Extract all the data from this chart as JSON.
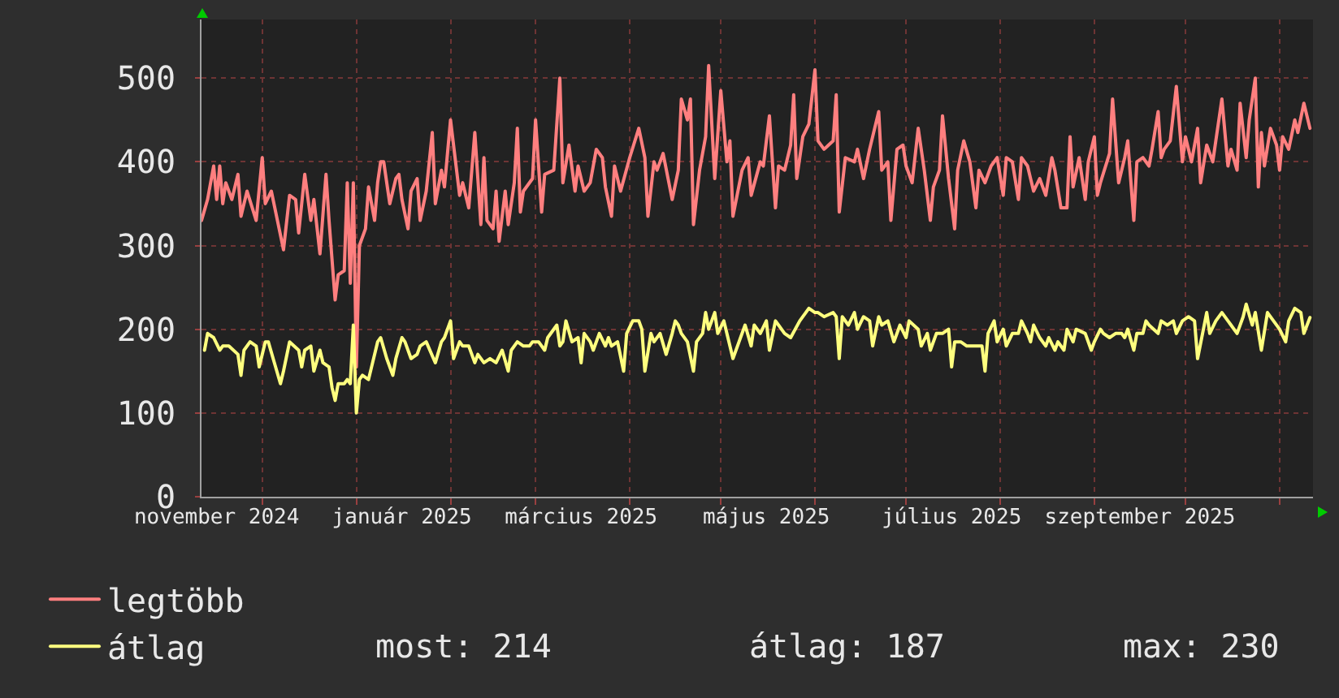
{
  "chart_data": {
    "type": "line",
    "series": [
      {
        "name": "legtöbb",
        "color": "#ff7f7f",
        "x": [
          "2024-11-11",
          "2024-11-13",
          "2024-11-15",
          "2024-11-16",
          "2024-11-17",
          "2024-11-18",
          "2024-11-19",
          "2024-11-21",
          "2024-11-23",
          "2024-11-24",
          "2024-11-26",
          "2024-11-29",
          "2024-12-01",
          "2024-12-02",
          "2024-12-04",
          "2024-12-06",
          "2024-12-08",
          "2024-12-10",
          "2024-12-12",
          "2024-12-13",
          "2024-12-15",
          "2024-12-17",
          "2024-12-18",
          "2024-12-20",
          "2024-12-22",
          "2024-12-23",
          "2024-12-25",
          "2024-12-26",
          "2024-12-28",
          "2024-12-29",
          "2024-12-30",
          "2024-12-31",
          "2025-01-01",
          "2025-01-02",
          "2025-01-04",
          "2025-01-05",
          "2025-01-07",
          "2025-01-08",
          "2025-01-09",
          "2025-01-10",
          "2025-01-12",
          "2025-01-14",
          "2025-01-15",
          "2025-01-16",
          "2025-01-18",
          "2025-01-19",
          "2025-01-21",
          "2025-01-22",
          "2025-01-24",
          "2025-01-26",
          "2025-01-27",
          "2025-01-29",
          "2025-01-30",
          "2025-02-01",
          "2025-02-02",
          "2025-02-04",
          "2025-02-05",
          "2025-02-07",
          "2025-02-09",
          "2025-02-11",
          "2025-02-12",
          "2025-02-13",
          "2025-02-15",
          "2025-02-16",
          "2025-02-17",
          "2025-02-19",
          "2025-02-20",
          "2025-02-22",
          "2025-02-23",
          "2025-02-24",
          "2025-02-25",
          "2025-02-28",
          "2025-03-01",
          "2025-03-03",
          "2025-03-04",
          "2025-03-07",
          "2025-03-09",
          "2025-03-10",
          "2025-03-12",
          "2025-03-14",
          "2025-03-15",
          "2025-03-17",
          "2025-03-19",
          "2025-03-21",
          "2025-03-23",
          "2025-03-24",
          "2025-03-26",
          "2025-03-27",
          "2025-03-29",
          "2025-04-01",
          "2025-04-04",
          "2025-04-06",
          "2025-04-07",
          "2025-04-09",
          "2025-04-10",
          "2025-04-12",
          "2025-04-15",
          "2025-04-17",
          "2025-04-18",
          "2025-04-20",
          "2025-04-21",
          "2025-04-22",
          "2025-04-24",
          "2025-04-26",
          "2025-04-27",
          "2025-04-29",
          "2025-05-01",
          "2025-05-03",
          "2025-05-04",
          "2025-05-05",
          "2025-05-08",
          "2025-05-10",
          "2025-05-11",
          "2025-05-14",
          "2025-05-15",
          "2025-05-17",
          "2025-05-19",
          "2025-05-20",
          "2025-05-22",
          "2025-05-24",
          "2025-05-25",
          "2025-05-26",
          "2025-05-28",
          "2025-05-30",
          "2025-06-01",
          "2025-06-02",
          "2025-06-04",
          "2025-06-07",
          "2025-06-08",
          "2025-06-09",
          "2025-06-11",
          "2025-06-14",
          "2025-06-15",
          "2025-06-17",
          "2025-06-19",
          "2025-06-22",
          "2025-06-23",
          "2025-06-25",
          "2025-06-26",
          "2025-06-28",
          "2025-06-30",
          "2025-07-01",
          "2025-07-03",
          "2025-07-05",
          "2025-07-07",
          "2025-07-09",
          "2025-07-10",
          "2025-07-12",
          "2025-07-13",
          "2025-07-15",
          "2025-07-17",
          "2025-07-18",
          "2025-07-20",
          "2025-07-22",
          "2025-07-24",
          "2025-07-25",
          "2025-07-27",
          "2025-07-29",
          "2025-07-31",
          "2025-08-02",
          "2025-08-03",
          "2025-08-05",
          "2025-08-07",
          "2025-08-08",
          "2025-08-10",
          "2025-08-12",
          "2025-08-14",
          "2025-08-16",
          "2025-08-18",
          "2025-08-19",
          "2025-08-21",
          "2025-08-23",
          "2025-08-24",
          "2025-08-25",
          "2025-08-27",
          "2025-08-29",
          "2025-08-30",
          "2025-09-01",
          "2025-09-02",
          "2025-09-03",
          "2025-09-06",
          "2025-09-07",
          "2025-09-09",
          "2025-09-11",
          "2025-09-12",
          "2025-09-14",
          "2025-09-15",
          "2025-09-17",
          "2025-09-19",
          "2025-09-20",
          "2025-09-22",
          "2025-09-23",
          "2025-09-24",
          "2025-09-26",
          "2025-09-28",
          "2025-09-30",
          "2025-10-01",
          "2025-10-03",
          "2025-10-05",
          "2025-10-06",
          "2025-10-08",
          "2025-10-10",
          "2025-10-11",
          "2025-10-13",
          "2025-10-15",
          "2025-10-16",
          "2025-10-18",
          "2025-10-19",
          "2025-10-21",
          "2025-10-22",
          "2025-10-24",
          "2025-10-25",
          "2025-10-26",
          "2025-10-27",
          "2025-10-29",
          "2025-10-31",
          "2025-11-01",
          "2025-11-02",
          "2025-11-04",
          "2025-11-06",
          "2025-11-07",
          "2025-11-09",
          "2025-11-11"
        ],
        "values": [
          330,
          355,
          395,
          355,
          395,
          350,
          375,
          355,
          385,
          335,
          365,
          330,
          405,
          350,
          365,
          330,
          295,
          360,
          355,
          315,
          385,
          330,
          355,
          290,
          385,
          330,
          235,
          265,
          270,
          375,
          255,
          375,
          155,
          300,
          320,
          370,
          330,
          375,
          400,
          400,
          350,
          380,
          385,
          355,
          320,
          365,
          380,
          330,
          365,
          435,
          350,
          390,
          370,
          450,
          420,
          360,
          375,
          345,
          435,
          325,
          405,
          330,
          320,
          365,
          305,
          365,
          325,
          375,
          440,
          340,
          365,
          380,
          450,
          340,
          385,
          390,
          500,
          375,
          420,
          365,
          395,
          365,
          375,
          415,
          405,
          370,
          335,
          395,
          365,
          405,
          440,
          405,
          335,
          400,
          390,
          410,
          355,
          390,
          475,
          450,
          475,
          325,
          390,
          430,
          515,
          380,
          485,
          400,
          425,
          335,
          390,
          405,
          360,
          400,
          395,
          455,
          345,
          395,
          390,
          420,
          480,
          380,
          430,
          445,
          510,
          425,
          415,
          425,
          480,
          340,
          405,
          400,
          415,
          380,
          415,
          460,
          390,
          400,
          330,
          415,
          420,
          395,
          375,
          440,
          390,
          330,
          370,
          390,
          455,
          380,
          320,
          390,
          425,
          400,
          345,
          390,
          375,
          395,
          405,
          360,
          405,
          400,
          355,
          405,
          395,
          365,
          380,
          360,
          405,
          390,
          345,
          345,
          430,
          370,
          405,
          355,
          400,
          430,
          360,
          375,
          410,
          475,
          375,
          405,
          425,
          330,
          400,
          405,
          395,
          415,
          460,
          405,
          415,
          425,
          490,
          400,
          430,
          400,
          440,
          375,
          420,
          400,
          425,
          475,
          395,
          415,
          390,
          470,
          405,
          450,
          500,
          370,
          435,
          395,
          440,
          420,
          390,
          430,
          415,
          450,
          435,
          470,
          440
        ]
      },
      {
        "name": "átlag",
        "color": "#ffff7f",
        "x": [
          "2024-11-12",
          "2024-11-13",
          "2024-11-15",
          "2024-11-17",
          "2024-11-18",
          "2024-11-20",
          "2024-11-23",
          "2024-11-24",
          "2024-11-25",
          "2024-11-27",
          "2024-11-29",
          "2024-11-30",
          "2024-12-02",
          "2024-12-03",
          "2024-12-05",
          "2024-12-07",
          "2024-12-08",
          "2024-12-10",
          "2024-12-13",
          "2024-12-14",
          "2024-12-15",
          "2024-12-17",
          "2024-12-18",
          "2024-12-20",
          "2024-12-21",
          "2024-12-23",
          "2024-12-24",
          "2024-12-25",
          "2024-12-26",
          "2024-12-28",
          "2024-12-29",
          "2024-12-30",
          "2024-12-31",
          "2025-01-01",
          "2025-01-02",
          "2025-01-03",
          "2025-01-05",
          "2025-01-06",
          "2025-01-08",
          "2025-01-09",
          "2025-01-11",
          "2025-01-13",
          "2025-01-14",
          "2025-01-16",
          "2025-01-17",
          "2025-01-19",
          "2025-01-21",
          "2025-01-22",
          "2025-01-24",
          "2025-01-27",
          "2025-01-29",
          "2025-01-30",
          "2025-02-01",
          "2025-02-02",
          "2025-02-04",
          "2025-02-05",
          "2025-02-07",
          "2025-02-09",
          "2025-02-10",
          "2025-02-12",
          "2025-02-14",
          "2025-02-16",
          "2025-02-18",
          "2025-02-20",
          "2025-02-21",
          "2025-02-23",
          "2025-02-25",
          "2025-02-27",
          "2025-02-28",
          "2025-03-02",
          "2025-03-04",
          "2025-03-05",
          "2025-03-08",
          "2025-03-09",
          "2025-03-10",
          "2025-03-11",
          "2025-03-13",
          "2025-03-15",
          "2025-03-16",
          "2025-03-17",
          "2025-03-19",
          "2025-03-20",
          "2025-03-22",
          "2025-03-24",
          "2025-03-25",
          "2025-03-26",
          "2025-03-28",
          "2025-03-30",
          "2025-03-31",
          "2025-04-02",
          "2025-04-04",
          "2025-04-05",
          "2025-04-06",
          "2025-04-08",
          "2025-04-09",
          "2025-04-11",
          "2025-04-13",
          "2025-04-15",
          "2025-04-16",
          "2025-04-17",
          "2025-04-18",
          "2025-04-20",
          "2025-04-22",
          "2025-04-23",
          "2025-04-25",
          "2025-04-26",
          "2025-04-27",
          "2025-04-29",
          "2025-04-30",
          "2025-05-02",
          "2025-05-03",
          "2025-05-05",
          "2025-05-07",
          "2025-05-09",
          "2025-05-11",
          "2025-05-12",
          "2025-05-14",
          "2025-05-16",
          "2025-05-17",
          "2025-05-19",
          "2025-05-20",
          "2025-05-22",
          "2025-05-24",
          "2025-05-27",
          "2025-05-30",
          "2025-06-01",
          "2025-06-02",
          "2025-06-04",
          "2025-06-07",
          "2025-06-08",
          "2025-06-09",
          "2025-06-10",
          "2025-06-12",
          "2025-06-14",
          "2025-06-15",
          "2025-06-17",
          "2025-06-19",
          "2025-06-20",
          "2025-06-22",
          "2025-06-23",
          "2025-06-25",
          "2025-06-27",
          "2025-06-29",
          "2025-07-01",
          "2025-07-02",
          "2025-07-05",
          "2025-07-06",
          "2025-07-08",
          "2025-07-09",
          "2025-07-11",
          "2025-07-13",
          "2025-07-15",
          "2025-07-16",
          "2025-07-17",
          "2025-07-19",
          "2025-07-21",
          "2025-07-24",
          "2025-07-26",
          "2025-07-27",
          "2025-07-28",
          "2025-07-30",
          "2025-07-31",
          "2025-08-02",
          "2025-08-03",
          "2025-08-05",
          "2025-08-07",
          "2025-08-08",
          "2025-08-10",
          "2025-08-11",
          "2025-08-12",
          "2025-08-14",
          "2025-08-16",
          "2025-08-17",
          "2025-08-19",
          "2025-08-20",
          "2025-08-22",
          "2025-08-23",
          "2025-08-25",
          "2025-08-26",
          "2025-08-29",
          "2025-08-31",
          "2025-09-01",
          "2025-09-03",
          "2025-09-04",
          "2025-09-06",
          "2025-09-08",
          "2025-09-10",
          "2025-09-11",
          "2025-09-12",
          "2025-09-14",
          "2025-09-15",
          "2025-09-17",
          "2025-09-18",
          "2025-09-19",
          "2025-09-22",
          "2025-09-23",
          "2025-09-25",
          "2025-09-27",
          "2025-09-28",
          "2025-09-30",
          "2025-10-02",
          "2025-10-04",
          "2025-10-05",
          "2025-10-08",
          "2025-10-09",
          "2025-10-11",
          "2025-10-13",
          "2025-10-15",
          "2025-10-16",
          "2025-10-18",
          "2025-10-20",
          "2025-10-21",
          "2025-10-23",
          "2025-10-24",
          "2025-10-26",
          "2025-10-28",
          "2025-10-30",
          "2025-11-01",
          "2025-11-03",
          "2025-11-04",
          "2025-11-06",
          "2025-11-08",
          "2025-11-09",
          "2025-11-11"
        ],
        "values": [
          175,
          195,
          190,
          175,
          180,
          180,
          170,
          145,
          175,
          185,
          180,
          155,
          185,
          185,
          160,
          135,
          150,
          185,
          175,
          155,
          175,
          180,
          150,
          175,
          160,
          155,
          130,
          115,
          135,
          135,
          140,
          135,
          205,
          100,
          140,
          145,
          140,
          155,
          185,
          190,
          165,
          145,
          165,
          190,
          185,
          165,
          170,
          180,
          185,
          160,
          185,
          190,
          210,
          165,
          185,
          180,
          180,
          160,
          170,
          160,
          165,
          160,
          175,
          150,
          175,
          185,
          180,
          180,
          185,
          185,
          175,
          190,
          205,
          180,
          185,
          210,
          185,
          190,
          160,
          195,
          185,
          175,
          195,
          180,
          190,
          180,
          185,
          150,
          195,
          210,
          210,
          200,
          150,
          195,
          185,
          195,
          170,
          195,
          210,
          205,
          195,
          185,
          150,
          185,
          195,
          220,
          200,
          220,
          195,
          210,
          195,
          165,
          185,
          205,
          180,
          205,
          195,
          210,
          175,
          210,
          205,
          195,
          190,
          210,
          225,
          220,
          220,
          215,
          220,
          215,
          165,
          215,
          205,
          220,
          200,
          215,
          210,
          180,
          215,
          205,
          210,
          185,
          205,
          190,
          210,
          200,
          180,
          195,
          175,
          195,
          195,
          200,
          155,
          185,
          185,
          180,
          180,
          180,
          150,
          195,
          210,
          185,
          200,
          180,
          195,
          195,
          210,
          195,
          185,
          205,
          190,
          180,
          190,
          175,
          185,
          175,
          200,
          185,
          200,
          195,
          175,
          185,
          200,
          195,
          190,
          195,
          195,
          190,
          200,
          175,
          195,
          195,
          210,
          205,
          195,
          210,
          205,
          210,
          195,
          210,
          215,
          210,
          165,
          220,
          195,
          210,
          220,
          210,
          205,
          195,
          215,
          230,
          205,
          220,
          175,
          220,
          210,
          200,
          185,
          210,
          225,
          220,
          195,
          214
        ]
      }
    ],
    "xlim": [
      "2024-11-11",
      "2025-11-12"
    ],
    "xticks": [
      {
        "value": "2024-12-01",
        "label": null
      },
      {
        "value": "2025-01-01",
        "label": null
      },
      {
        "value": "2025-02-01",
        "label": null
      },
      {
        "value": "2025-03-01",
        "label": null
      },
      {
        "value": "2025-04-01",
        "label": null
      },
      {
        "value": "2025-05-01",
        "label": null
      },
      {
        "value": "2025-06-01",
        "label": null
      },
      {
        "value": "2025-07-01",
        "label": null
      },
      {
        "value": "2025-08-01",
        "label": null
      },
      {
        "value": "2025-09-01",
        "label": null
      },
      {
        "value": "2025-10-01",
        "label": null
      },
      {
        "value": "2025-11-01",
        "label": null
      },
      {
        "value": "2024-11-16",
        "label": "november 2024"
      },
      {
        "value": "2025-01-16",
        "label": "január 2025"
      },
      {
        "value": "2025-03-16",
        "label": "március 2025"
      },
      {
        "value": "2025-05-16",
        "label": "május 2025"
      },
      {
        "value": "2025-07-16",
        "label": "július 2025"
      },
      {
        "value": "2025-09-16",
        "label": "szeptember 2025"
      }
    ],
    "ylim": [
      0,
      570
    ],
    "yticks": [
      0,
      100,
      200,
      300,
      400,
      500
    ],
    "grid": true,
    "legend": "bottom left",
    "annotations": [
      "most: 214",
      "átlag: 187",
      "max: 230"
    ]
  }
}
